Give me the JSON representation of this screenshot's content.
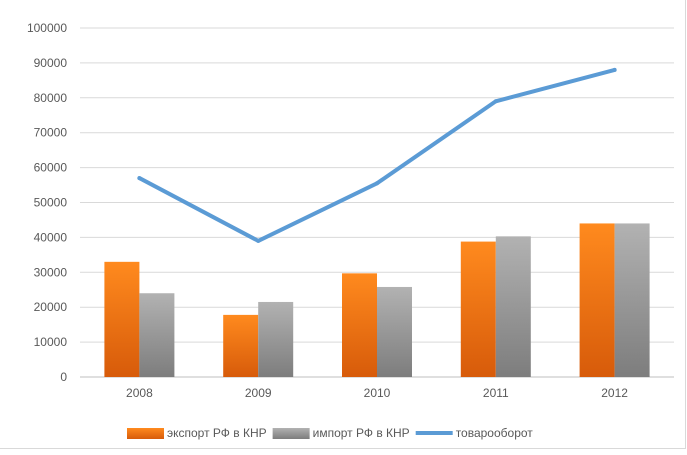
{
  "chart_data": {
    "type": "bar",
    "categories": [
      "2008",
      "2009",
      "2010",
      "2011",
      "2012"
    ],
    "series": [
      {
        "name": "экспорт РФ в КНР",
        "kind": "bar",
        "color": "#ed7d31",
        "values": [
          33000,
          17800,
          29700,
          38800,
          44000
        ]
      },
      {
        "name": "импорт РФ в КНР",
        "kind": "bar",
        "color": "#a5a5a5",
        "values": [
          24000,
          21500,
          25800,
          40300,
          44000
        ]
      },
      {
        "name": "товарооборот",
        "kind": "line",
        "color": "#5b9bd5",
        "values": [
          57000,
          39000,
          55500,
          79000,
          88000
        ]
      }
    ],
    "ylim": [
      0,
      100000
    ],
    "yticks": [
      "0",
      "10000",
      "20000",
      "30000",
      "40000",
      "50000",
      "60000",
      "70000",
      "80000",
      "90000",
      "100000"
    ],
    "grid": true,
    "legend_position": "bottom",
    "title": "",
    "xlabel": "",
    "ylabel": ""
  }
}
